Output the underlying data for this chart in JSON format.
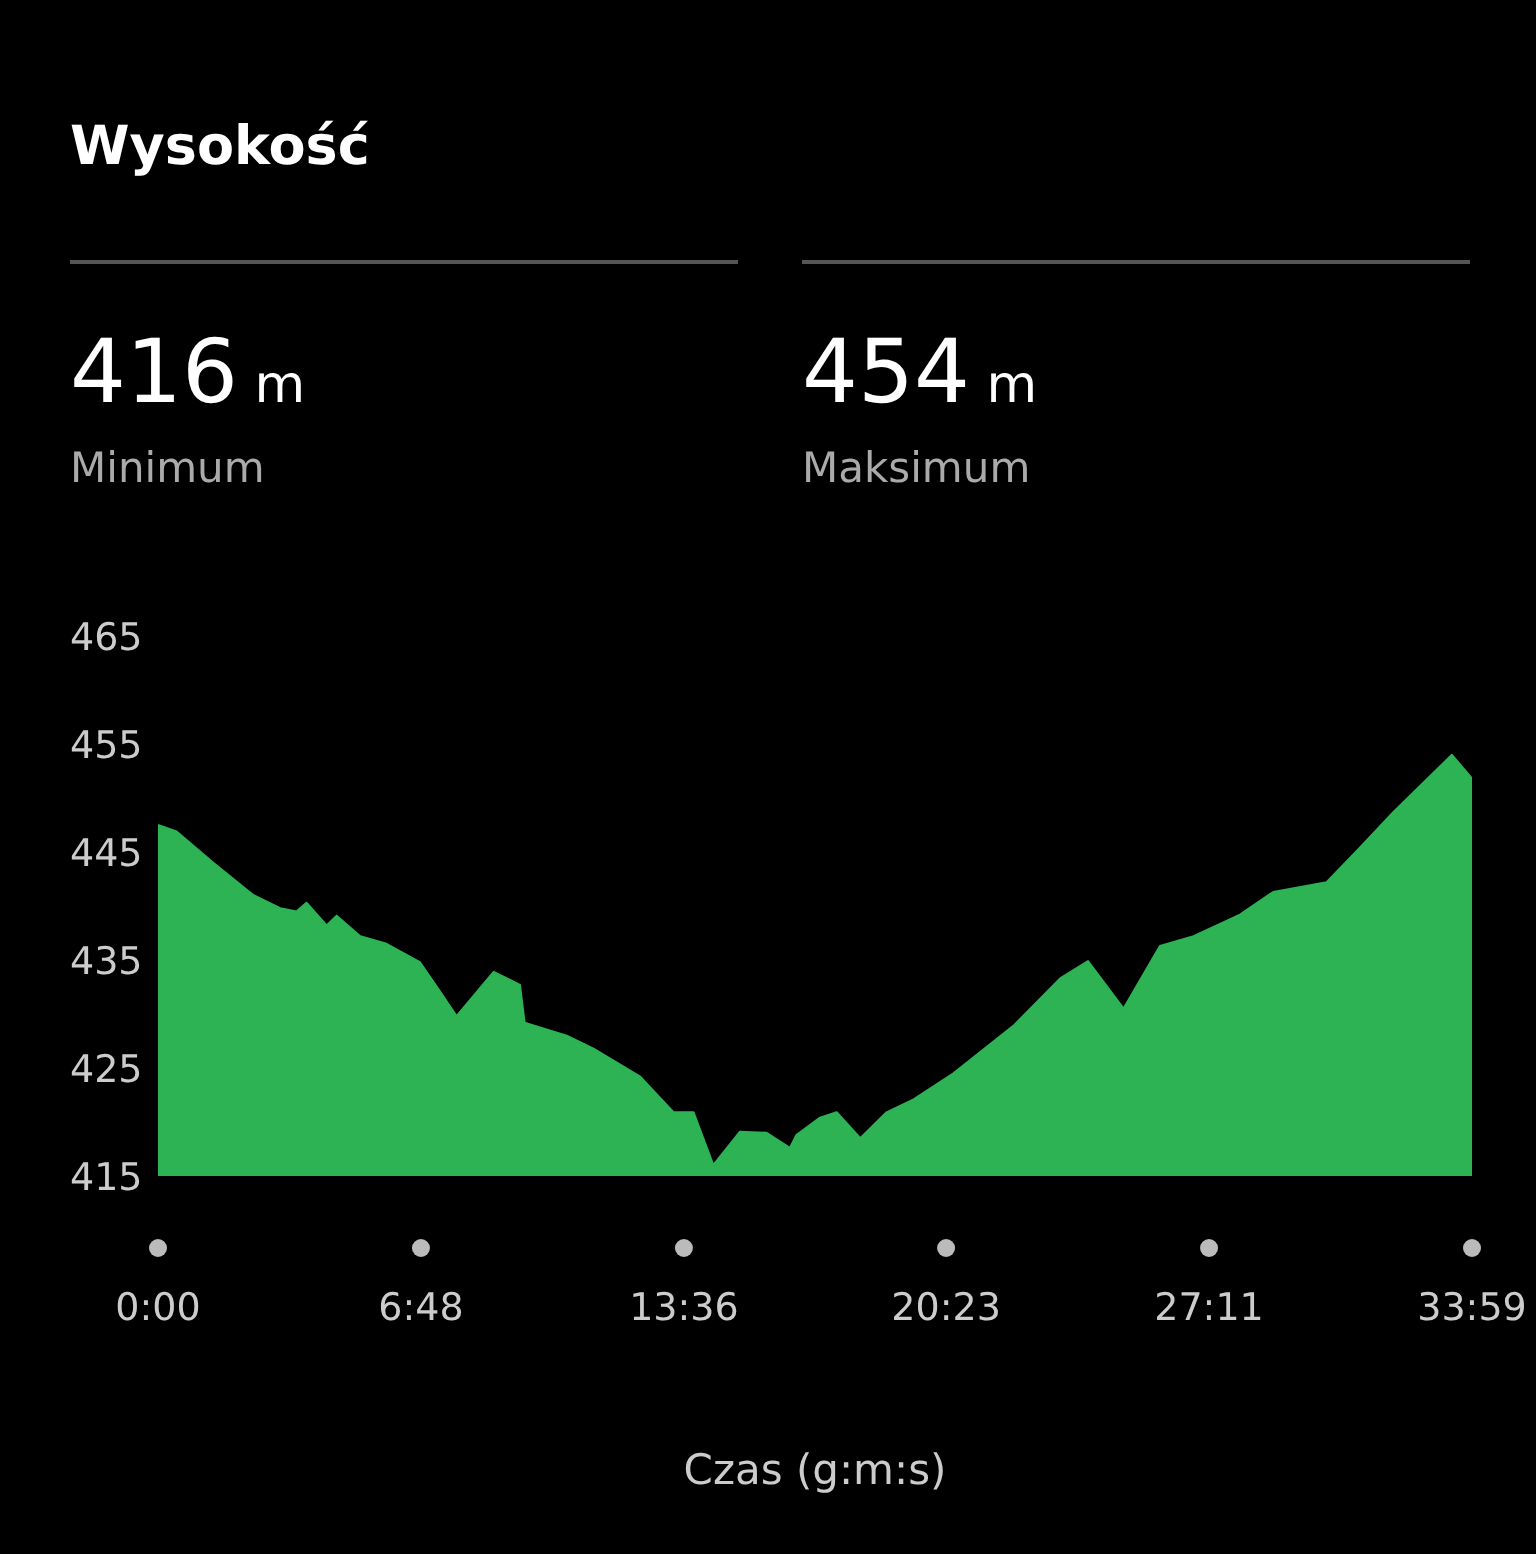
{
  "chart_data": {
    "type": "area",
    "title": "Wysokość",
    "xlabel": "Czas (g:m:s)",
    "annotations": [
      "416 m",
      "Minimum",
      "454 m",
      "Maksimum"
    ],
    "x": [
      0,
      0.48,
      1.43,
      2.47,
      3.16,
      3.58,
      3.84,
      4.36,
      4.62,
      5.23,
      5.91,
      6.77,
      7.29,
      7.72,
      8.68,
      9.36,
      9.48,
      10.57,
      11.26,
      12.47,
      13.33,
      13.85,
      14.36,
      15.05,
      15.74,
      16.34,
      16.51,
      17.12,
      17.55,
      18.16,
      18.84,
      19.54,
      20.57,
      22.12,
      23.33,
      24.05,
      24.97,
      25.91,
      26.78,
      27.98,
      28.84,
      30.22,
      31.08,
      31.95,
      33.46,
      33.98
    ],
    "series": [
      {
        "color": "#2db354",
        "values": [
          447.5,
          446.9,
          444,
          441,
          439.8,
          439.5,
          440.3,
          438.2,
          439.1,
          437.2,
          436.5,
          434.8,
          432.1,
          429.8,
          433.9,
          432.7,
          429.2,
          428,
          426.8,
          424.2,
          420.9,
          420.9,
          416,
          419.1,
          419,
          417.6,
          418.8,
          420.4,
          420.9,
          418.5,
          420.9,
          422.1,
          424.5,
          428.9,
          433.3,
          434.9,
          430.5,
          436.3,
          437.2,
          439.2,
          441.3,
          442.2,
          445.4,
          448.7,
          454,
          451.8
        ]
      }
    ],
    "xlim": [
      0,
      33.98
    ],
    "xticks": [
      {
        "value": 0,
        "label": "0:00"
      },
      {
        "value": 6.8,
        "label": "6:48"
      },
      {
        "value": 13.6,
        "label": "13:36"
      },
      {
        "value": 20.38,
        "label": "20:23"
      },
      {
        "value": 27.18,
        "label": "27:11"
      },
      {
        "value": 33.98,
        "label": "33:59"
      }
    ],
    "ylim": [
      415,
      465
    ],
    "yticks": [
      415,
      425,
      435,
      445,
      455,
      465
    ],
    "grid": false,
    "legend": false,
    "marker": "none"
  }
}
